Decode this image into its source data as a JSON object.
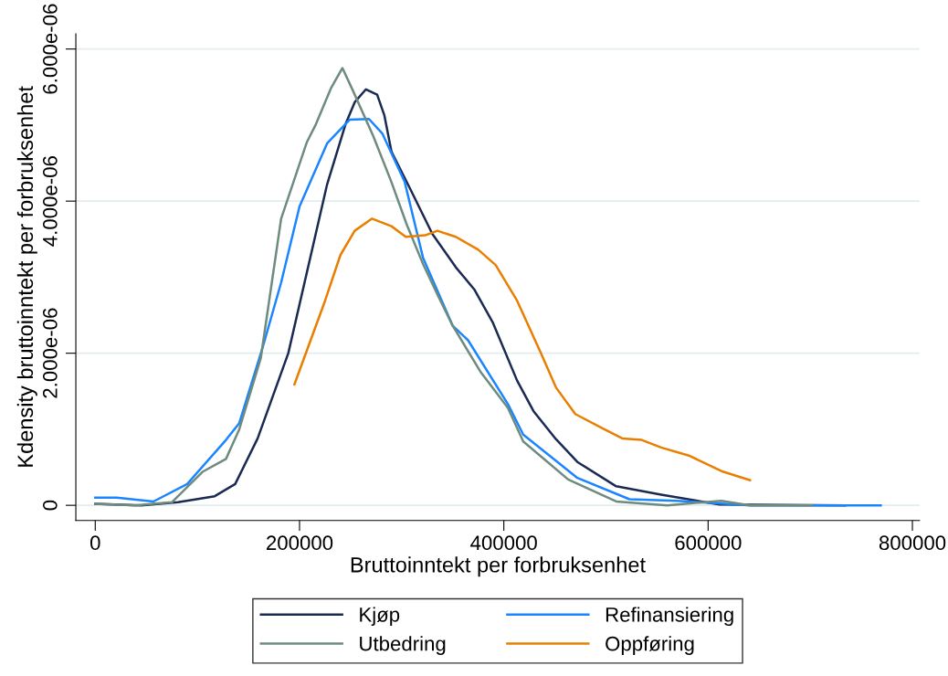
{
  "chart_data": {
    "type": "line",
    "xlabel": "Bruttoinntekt per forbruksenhet",
    "ylabel": "Kdensity bruttoinntekt per forbruksenhet",
    "xlim": [
      -19000,
      807000
    ],
    "xticks": [
      0,
      200000,
      400000,
      600000,
      800000
    ],
    "ylim": [
      -2e-07,
      6.2e-06
    ],
    "yticks": [
      {
        "value": 0,
        "label": "0"
      },
      {
        "value": 2e-06,
        "label": "2.000e-06"
      },
      {
        "value": 4e-06,
        "label": "4.000e-06"
      },
      {
        "value": 6e-06,
        "label": "6.000e-06"
      }
    ],
    "grid": "y",
    "legend": "bottom",
    "marker": "none",
    "line_style": "solid",
    "series": [
      {
        "name": "Kjøp",
        "color": "#1a2a52",
        "x": [
          0,
          45000,
          81000,
          117000,
          137000,
          159000,
          189000,
          227000,
          245000,
          254000,
          265000,
          276000,
          283000,
          290000,
          308000,
          330000,
          353000,
          371000,
          389000,
          413000,
          429000,
          451000,
          472000,
          510000,
          554000,
          611000,
          734000
        ],
        "values": [
          2e-08,
          0,
          4e-08,
          1.2e-07,
          2.8e-07,
          8.8e-07,
          2e-06,
          4.22e-06,
          5.01e-06,
          5.3e-06,
          5.47e-06,
          5.4e-06,
          5.13e-06,
          4.65e-06,
          4.17e-06,
          3.57e-06,
          3.13e-06,
          2.84e-06,
          2.41e-06,
          1.64e-06,
          1.24e-06,
          8.7e-07,
          5.7e-07,
          2.5e-07,
          1.4e-07,
          1e-08,
          0
        ]
      },
      {
        "name": "Refinansiering",
        "color": "#1a85ff",
        "x": [
          0,
          21000,
          57000,
          90000,
          128000,
          141000,
          164000,
          182000,
          200000,
          227000,
          249000,
          268000,
          281000,
          303000,
          321000,
          350000,
          365000,
          404000,
          419000,
          472000,
          523000,
          569000,
          641000,
          769000
        ],
        "values": [
          1e-07,
          1e-07,
          5e-08,
          2.8e-07,
          8.6e-07,
          1.08e-06,
          2.08e-06,
          2.93e-06,
          3.93e-06,
          4.76e-06,
          5.07e-06,
          5.08e-06,
          4.89e-06,
          4.25e-06,
          3.25e-06,
          2.36e-06,
          2.17e-06,
          1.33e-06,
          9.3e-07,
          3.6e-07,
          8e-08,
          6e-08,
          0,
          0
        ]
      },
      {
        "name": "Utbedring",
        "color": "#6e8b7e",
        "x": [
          0,
          39000,
          75000,
          105000,
          128000,
          141000,
          162000,
          182000,
          207000,
          216000,
          231000,
          242000,
          251000,
          272000,
          290000,
          305000,
          321000,
          335000,
          350000,
          377000,
          404000,
          419000,
          463000,
          510000,
          560000,
          613000,
          641000,
          701000
        ],
        "values": [
          2e-08,
          0,
          4e-08,
          4.4e-07,
          6.1e-07,
          1e-06,
          1.93e-06,
          3.77e-06,
          4.77e-06,
          5.01e-06,
          5.49e-06,
          5.75e-06,
          5.49e-06,
          4.86e-06,
          4.25e-06,
          3.69e-06,
          3.17e-06,
          2.77e-06,
          2.36e-06,
          1.76e-06,
          1.28e-06,
          8.4e-07,
          3.4e-07,
          5e-08,
          0,
          6e-08,
          0,
          0
        ]
      },
      {
        "name": "Oppføring",
        "color": "#e87f00",
        "x": [
          195000,
          225000,
          240000,
          254000,
          271000,
          290000,
          304000,
          323000,
          335000,
          353000,
          375000,
          392000,
          413000,
          436000,
          451000,
          470000,
          497000,
          516000,
          535000,
          554000,
          582000,
          613000,
          641000
        ],
        "values": [
          1.59e-06,
          2.69e-06,
          3.29e-06,
          3.61e-06,
          3.77e-06,
          3.67e-06,
          3.53e-06,
          3.55e-06,
          3.61e-06,
          3.53e-06,
          3.36e-06,
          3.16e-06,
          2.69e-06,
          2.01e-06,
          1.55e-06,
          1.2e-06,
          1.01e-06,
          8.8e-07,
          8.6e-07,
          7.6e-07,
          6.5e-07,
          4.5e-07,
          3.3e-07
        ]
      }
    ]
  }
}
